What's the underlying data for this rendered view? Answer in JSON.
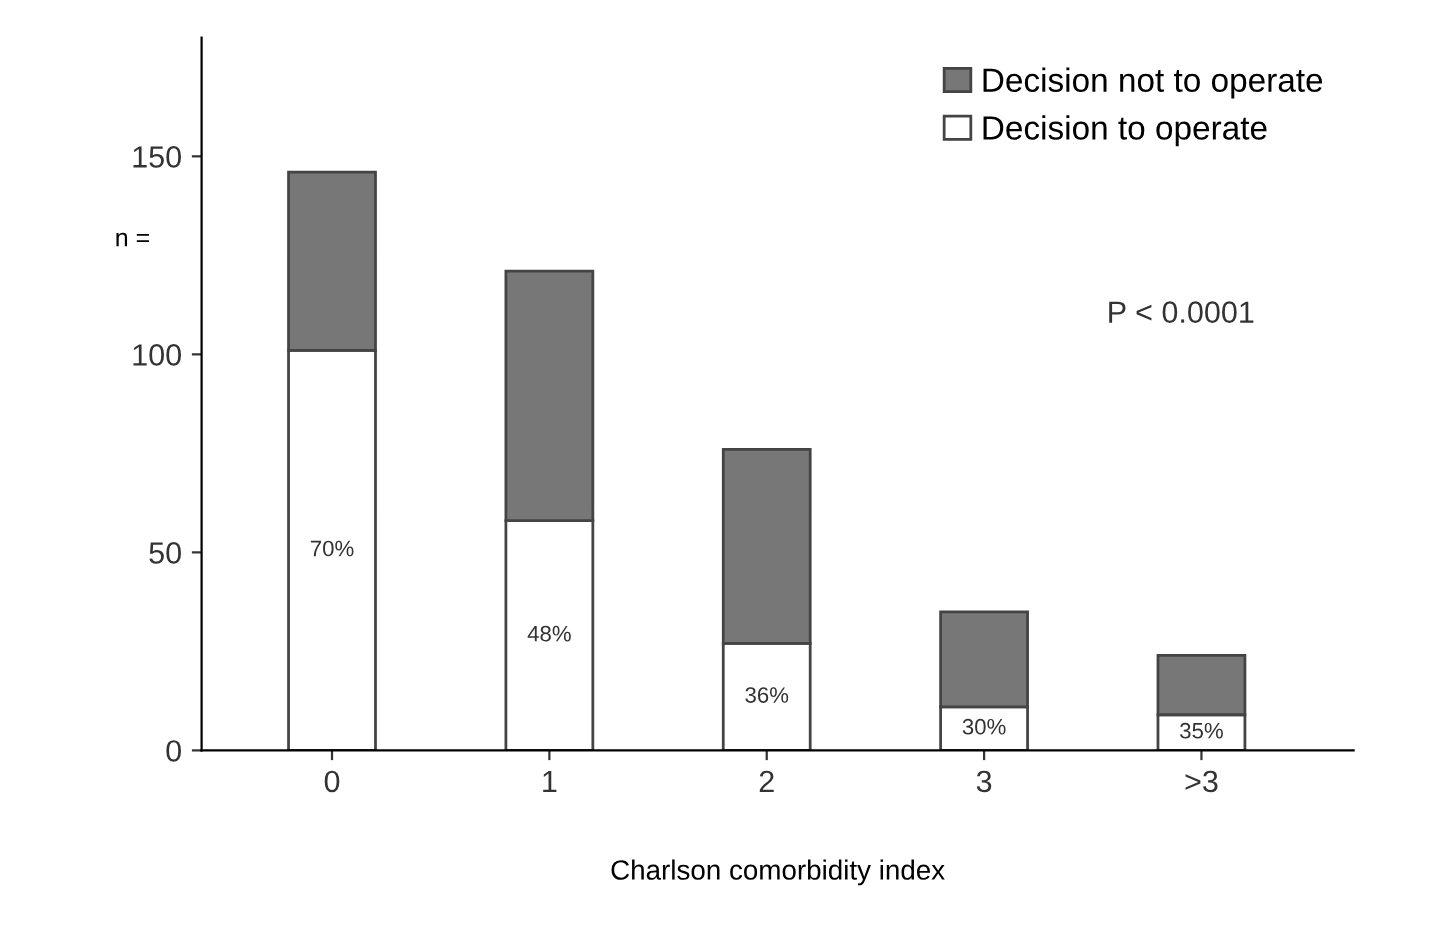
{
  "chart_data": {
    "type": "bar",
    "stacked": true,
    "categories": [
      "0",
      "1",
      "2",
      "3",
      ">3"
    ],
    "series": [
      {
        "name": "Decision to operate",
        "color": "#ffffff",
        "values": [
          101,
          58,
          27,
          11,
          9
        ]
      },
      {
        "name": "Decision not to operate",
        "color": "#777777",
        "values": [
          45,
          63,
          49,
          24,
          15
        ]
      }
    ],
    "xlabel": "Charlson comorbidity index",
    "ylabel": "n =",
    "ylim": [
      0,
      180
    ],
    "yticks": [
      0,
      50,
      100,
      150
    ],
    "annotations": [
      "P < 0.0001",
      "70%",
      "48%",
      "36%",
      "30%",
      "35%"
    ],
    "legend": "top right",
    "grid": false
  }
}
